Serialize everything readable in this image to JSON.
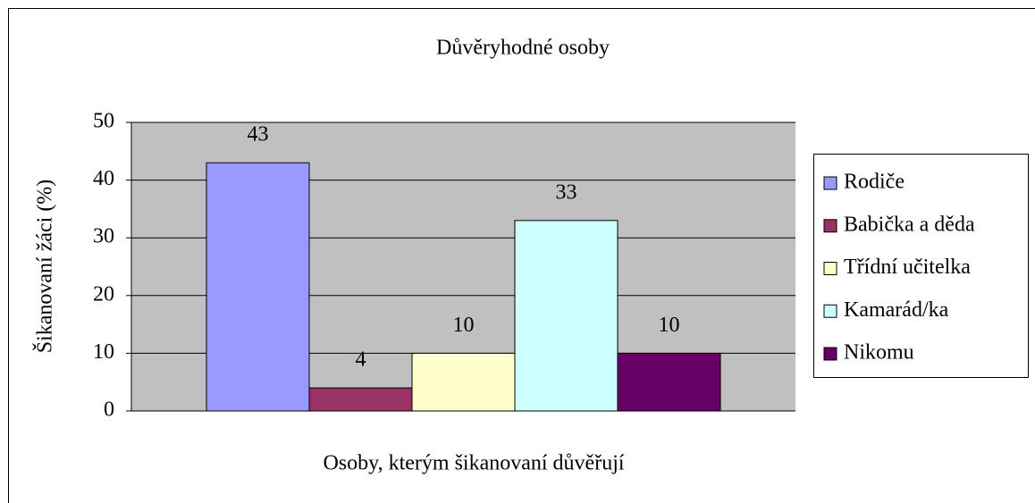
{
  "chart_data": {
    "type": "bar",
    "title": "Důvěryhodné osoby",
    "x_label": "Osoby, kterým šikanovaní důvěřují",
    "y_label": "Šikanovaní žáci (%)",
    "categories": [
      null
    ],
    "series": [
      {
        "name": "Rodiče",
        "color": "#9999ff",
        "values": [
          43
        ]
      },
      {
        "name": "Babička a děda",
        "color": "#993366",
        "values": [
          4
        ]
      },
      {
        "name": "Třídní učitelka",
        "color": "#ffffcc",
        "values": [
          10
        ]
      },
      {
        "name": "Kamarád/ka",
        "color": "#ccffff",
        "values": [
          33
        ]
      },
      {
        "name": "Nikomu",
        "color": "#660066",
        "values": [
          10
        ]
      }
    ],
    "ylim": [
      0,
      50
    ],
    "yticks": [
      0,
      10,
      20,
      30,
      40,
      50
    ],
    "grid": true,
    "legend": "right",
    "data_labels": true
  }
}
